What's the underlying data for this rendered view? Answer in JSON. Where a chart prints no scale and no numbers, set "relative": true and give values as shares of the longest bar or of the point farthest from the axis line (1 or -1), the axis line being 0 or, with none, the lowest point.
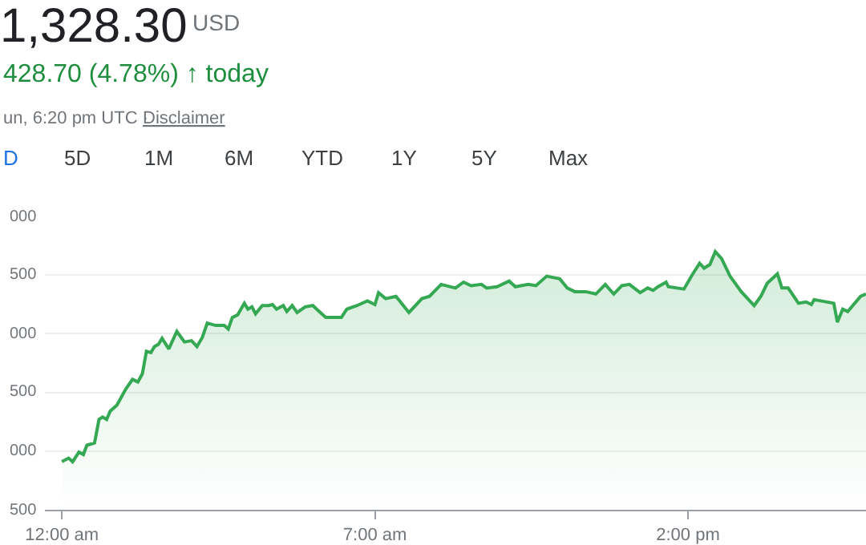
{
  "chart_data": {
    "type": "area",
    "title": "1,328.30",
    "relative": true,
    "annotations": [
      "USD",
      "428.70 (4.78%) ↑ today",
      "un, 6:20 pm UTC ·",
      "Disclaimer",
      "D",
      "5D",
      "1M",
      "6M",
      "YTD",
      "1Y",
      "5Y",
      "Max",
      "500",
      "000",
      "500",
      "000",
      "500",
      "000"
    ],
    "x": [
      0,
      0.15,
      0.24,
      0.38,
      0.48,
      0.56,
      0.73,
      0.83,
      0.91,
      1.0,
      1.08,
      1.23,
      1.43,
      1.58,
      1.7,
      1.8,
      1.89,
      1.99,
      2.07,
      2.16,
      2.24,
      2.39,
      2.57,
      2.74,
      2.9,
      3.02,
      3.14,
      3.25,
      3.44,
      3.63,
      3.72,
      3.81,
      3.93,
      4.08,
      4.16,
      4.25,
      4.33,
      4.48,
      4.62,
      4.71,
      4.8,
      4.95,
      5.03,
      5.15,
      5.26,
      5.44,
      5.61,
      5.78,
      5.9,
      6.13,
      6.25,
      6.37,
      6.6,
      6.83,
      7.0,
      7.08,
      7.24,
      7.47,
      7.76,
      8.05,
      8.22,
      8.48,
      8.8,
      8.98,
      9.15,
      9.38,
      9.5,
      9.73,
      10.0,
      10.14,
      10.43,
      10.6,
      10.84,
      11.13,
      11.3,
      11.47,
      11.71,
      11.94,
      12.15,
      12.34,
      12.52,
      12.69,
      12.93,
      13.1,
      13.22,
      13.33,
      13.51,
      13.56,
      13.91,
      14.09,
      14.26,
      14.36,
      14.49,
      14.61,
      14.75,
      14.94,
      15.19,
      15.48,
      15.63,
      15.77,
      16.0,
      16.1,
      16.24,
      16.47,
      16.64,
      16.76,
      16.82,
      17.26,
      17.34,
      17.46,
      17.57,
      17.86,
      17.98
    ],
    "series": [
      {
        "color": "#34a853",
        "values": [
          0.186,
          0.2,
          0.186,
          0.223,
          0.214,
          0.25,
          0.259,
          0.35,
          0.359,
          0.35,
          0.382,
          0.405,
          0.468,
          0.505,
          0.495,
          0.527,
          0.614,
          0.609,
          0.632,
          0.641,
          0.664,
          0.623,
          0.691,
          0.65,
          0.655,
          0.632,
          0.668,
          0.723,
          0.714,
          0.714,
          0.7,
          0.745,
          0.755,
          0.8,
          0.777,
          0.786,
          0.759,
          0.791,
          0.791,
          0.795,
          0.777,
          0.791,
          0.768,
          0.791,
          0.764,
          0.786,
          0.791,
          0.764,
          0.745,
          0.745,
          0.745,
          0.777,
          0.791,
          0.809,
          0.795,
          0.841,
          0.818,
          0.827,
          0.764,
          0.818,
          0.827,
          0.873,
          0.859,
          0.882,
          0.868,
          0.873,
          0.859,
          0.864,
          0.886,
          0.864,
          0.873,
          0.868,
          0.905,
          0.895,
          0.859,
          0.845,
          0.845,
          0.836,
          0.873,
          0.836,
          0.868,
          0.873,
          0.841,
          0.859,
          0.85,
          0.864,
          0.882,
          0.864,
          0.855,
          0.909,
          0.955,
          0.936,
          0.95,
          1,
          0.973,
          0.905,
          0.845,
          0.791,
          0.827,
          0.877,
          0.914,
          0.859,
          0.859,
          0.8,
          0.805,
          0.795,
          0.814,
          0.8,
          0.727,
          0.777,
          0.768,
          0.827,
          0.836
        ]
      }
    ],
    "xlim": [
      -0.38,
      17.98
    ],
    "xticks": [
      {
        "value": 0,
        "label": "12:00 am"
      },
      {
        "value": 7,
        "label": "7:00 am"
      },
      {
        "value": 14,
        "label": "2:00 pm"
      }
    ],
    "grid": "y"
  }
}
